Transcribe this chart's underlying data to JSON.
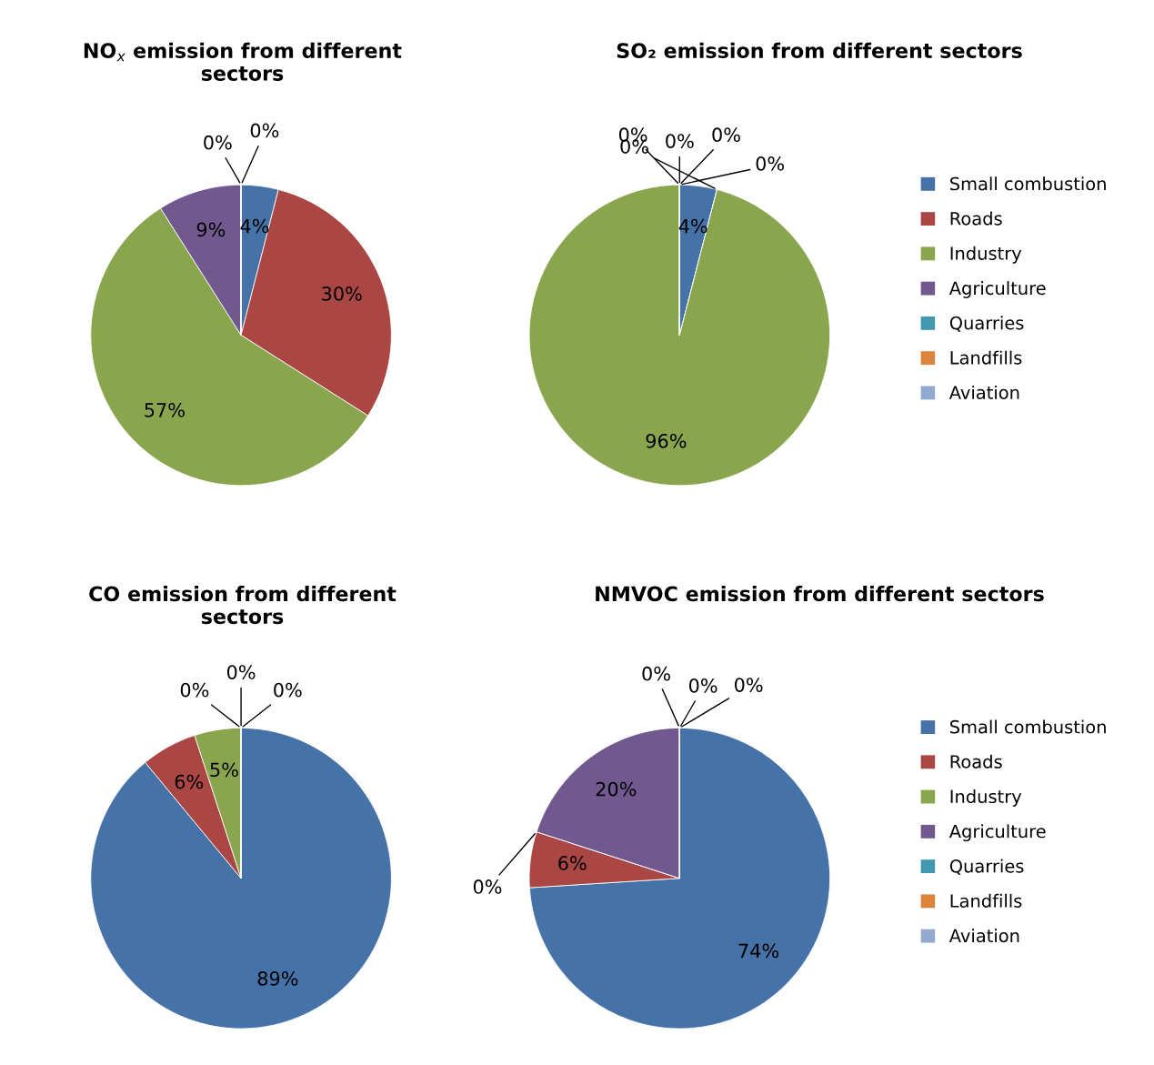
{
  "chart_data": [
    {
      "type": "pie",
      "title": "NO$_{x}$ emission from different\nsectors",
      "categories": [
        null,
        null,
        null,
        null,
        null,
        null,
        null
      ],
      "values": [
        4,
        30,
        57,
        9,
        0,
        0,
        0
      ],
      "value_labels": [
        "4%",
        "30%",
        "57%",
        "9%",
        "0%",
        null,
        "0%"
      ],
      "colors": [
        "#4572a7",
        "#aa4643",
        "#89a54e",
        "#71588f",
        "#4198af",
        "#db843d",
        "#93a9cf"
      ],
      "legend": false
    },
    {
      "type": "pie",
      "title": "SO₂ emission from different sectors",
      "categories": [
        "Small combustion",
        "Roads",
        "Industry",
        "Agriculture",
        "Quarries",
        "Landfills",
        "Aviation"
      ],
      "values": [
        4,
        0,
        96,
        0,
        0,
        0,
        0
      ],
      "value_labels": [
        "4%",
        "0%",
        "96%",
        "0%",
        "0%",
        "0%",
        "0%"
      ],
      "colors": [
        "#4572a7",
        "#aa4643",
        "#89a54e",
        "#71588f",
        "#4198af",
        "#db843d",
        "#93a9cf"
      ],
      "legend": "right"
    },
    {
      "type": "pie",
      "title": "CO emission from different\nsectors",
      "categories": [
        null,
        null,
        null,
        null,
        null,
        null,
        null
      ],
      "values": [
        89,
        6,
        5,
        0,
        0,
        0,
        0
      ],
      "value_labels": [
        "89%",
        "6%",
        "5%",
        "0%",
        "0%",
        null,
        "0%"
      ],
      "colors": [
        "#4572a7",
        "#aa4643",
        "#89a54e",
        "#71588f",
        "#4198af",
        "#db843d",
        "#93a9cf"
      ],
      "legend": false
    },
    {
      "type": "pie",
      "title": "NMVOC emission from different sectors",
      "categories": [
        "Small combustion",
        "Roads",
        "Industry",
        "Agriculture",
        "Quarries",
        "Landfills",
        "Aviation"
      ],
      "values": [
        74,
        6,
        0,
        20,
        0,
        0,
        0
      ],
      "value_labels": [
        "74%",
        "6%",
        "0%",
        "20%",
        "0%",
        "0%",
        "0%"
      ],
      "colors": [
        "#4572a7",
        "#aa4643",
        "#89a54e",
        "#71588f",
        "#4198af",
        "#db843d",
        "#93a9cf"
      ],
      "legend": "right"
    }
  ]
}
